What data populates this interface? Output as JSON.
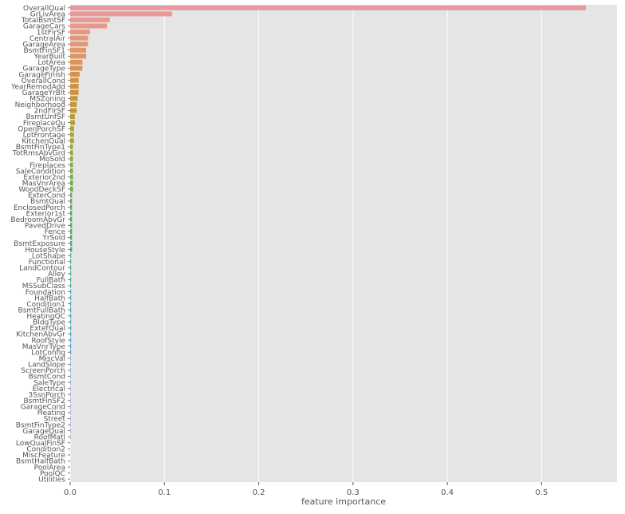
{
  "chart_data": {
    "type": "bar",
    "orientation": "horizontal",
    "xlabel": "feature importance",
    "ylabel": "",
    "xlim": [
      0,
      0.58
    ],
    "xticks": [
      0.0,
      0.1,
      0.2,
      0.3,
      0.4,
      0.5
    ],
    "xtick_labels": [
      "0.0",
      "0.1",
      "0.2",
      "0.3",
      "0.4",
      "0.5"
    ],
    "grid": true,
    "background": "#e5e5e5",
    "categories": [
      "OverallQual",
      "GrLivArea",
      "TotalBsmtSF",
      "GarageCars",
      "1stFlrSF",
      "CentralAir",
      "GarageArea",
      "BsmtFinSF1",
      "YearBuilt",
      "LotArea",
      "GarageType",
      "GarageFinish",
      "OverallCond",
      "YearRemodAdd",
      "GarageYrBlt",
      "MSZoning",
      "Neighborhood",
      "2ndFlrSF",
      "BsmtUnfSF",
      "FireplaceQu",
      "OpenPorchSF",
      "LotFrontage",
      "KitchenQual",
      "BsmtFinType1",
      "TotRmsAbvGrd",
      "MoSold",
      "Fireplaces",
      "SaleCondition",
      "Exterior2nd",
      "MasVnrArea",
      "WoodDeckSF",
      "ExterCond",
      "BsmtQual",
      "EnclosedPorch",
      "Exterior1st",
      "BedroomAbvGr",
      "PavedDrive",
      "Fence",
      "YrSold",
      "BsmtExposure",
      "HouseStyle",
      "LotShape",
      "Functional",
      "LandContour",
      "Alley",
      "FullBath",
      "MSSubClass",
      "Foundation",
      "HalfBath",
      "Condition1",
      "BsmtFullBath",
      "HeatingQC",
      "BldgType",
      "ExterQual",
      "KitchenAbvGr",
      "RoofStyle",
      "MasVnrType",
      "LotConfig",
      "MiscVal",
      "LandSlope",
      "ScreenPorch",
      "BsmtCond",
      "SaleType",
      "Electrical",
      "3SsnPorch",
      "BsmtFinSF2",
      "GarageCond",
      "Heating",
      "Street",
      "BsmtFinType2",
      "GarageQual",
      "RoofMatl",
      "LowQualFinSF",
      "Condition2",
      "MiscFeature",
      "BsmtHalfBath",
      "PoolArea",
      "PoolQC",
      "Utilities"
    ],
    "values": [
      0.547,
      0.108,
      0.042,
      0.039,
      0.021,
      0.019,
      0.019,
      0.017,
      0.017,
      0.013,
      0.013,
      0.01,
      0.009,
      0.009,
      0.009,
      0.008,
      0.007,
      0.007,
      0.005,
      0.005,
      0.004,
      0.004,
      0.004,
      0.003,
      0.003,
      0.003,
      0.003,
      0.003,
      0.003,
      0.003,
      0.003,
      0.002,
      0.002,
      0.002,
      0.002,
      0.002,
      0.002,
      0.002,
      0.002,
      0.002,
      0.002,
      0.001,
      0.001,
      0.001,
      0.001,
      0.001,
      0.001,
      0.001,
      0.001,
      0.001,
      0.001,
      0.001,
      0.001,
      0.001,
      0.001,
      0.001,
      0.001,
      0.001,
      0.0005,
      0.0005,
      0.0005,
      0.0005,
      0.0005,
      0.0005,
      0.0005,
      0.0005,
      0.0005,
      0.0005,
      0.0005,
      0.0005,
      0.0005,
      0.0005,
      0.0,
      0.0,
      0.0,
      0.0,
      0.0,
      0.0,
      0.0
    ]
  }
}
